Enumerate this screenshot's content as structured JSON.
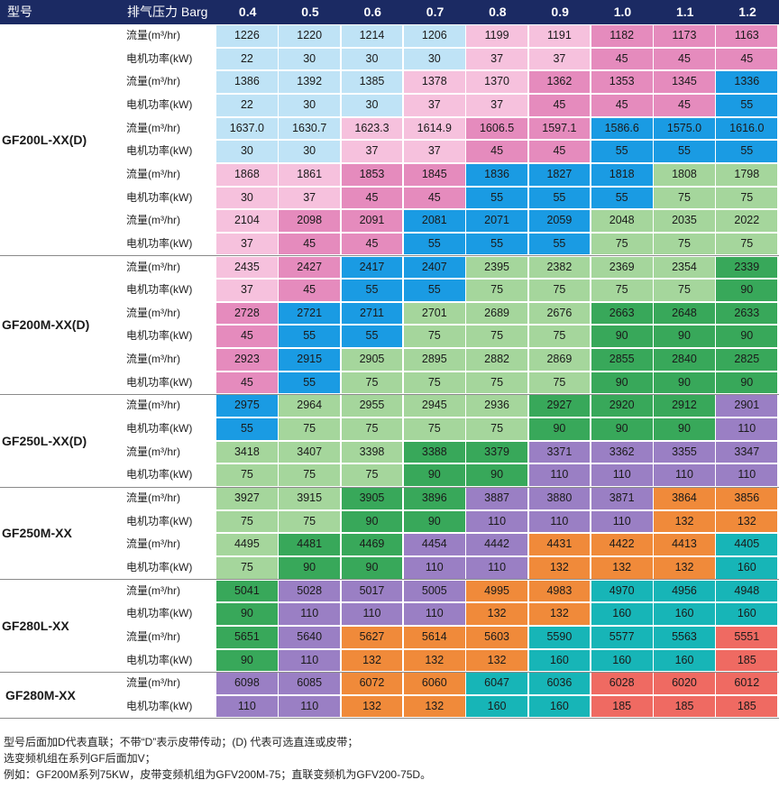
{
  "header": {
    "model_label": "型号",
    "pressure_label": "排气压力 Barg",
    "pressures": [
      "0.4",
      "0.5",
      "0.6",
      "0.7",
      "0.8",
      "0.9",
      "1.0",
      "1.1",
      "1.2"
    ]
  },
  "row_labels": {
    "flow": "流量(m³/hr)",
    "power": "电机功率(kW)"
  },
  "colors": {
    "header_bg": "#1b2a63",
    "lightblue": "#bfe3f6",
    "lightpink": "#f6c1dd",
    "pink": "#e58bbd",
    "blue": "#1a9be3",
    "green": "#a5d69c",
    "darkgreen": "#38a85a",
    "purple": "#9a7fc4",
    "orange": "#f08a3a",
    "teal": "#17b5b7",
    "red": "#ef6a62"
  },
  "groups": [
    {
      "model": "GF200L-XX(D)",
      "pairs": [
        {
          "flow": [
            "1226",
            "1220",
            "1214",
            "1206",
            "1199",
            "1191",
            "1182",
            "1173",
            "1163"
          ],
          "power": [
            "22",
            "30",
            "30",
            "30",
            "37",
            "37",
            "45",
            "45",
            "45"
          ],
          "flow_colors": [
            "lightblue",
            "lightblue",
            "lightblue",
            "lightblue",
            "lightpink",
            "lightpink",
            "pink",
            "pink",
            "pink"
          ],
          "power_colors": [
            "lightblue",
            "lightblue",
            "lightblue",
            "lightblue",
            "lightpink",
            "lightpink",
            "pink",
            "pink",
            "pink"
          ]
        },
        {
          "flow": [
            "1386",
            "1392",
            "1385",
            "1378",
            "1370",
            "1362",
            "1353",
            "1345",
            "1336"
          ],
          "power": [
            "22",
            "30",
            "30",
            "37",
            "37",
            "45",
            "45",
            "45",
            "55"
          ],
          "flow_colors": [
            "lightblue",
            "lightblue",
            "lightblue",
            "lightpink",
            "lightpink",
            "pink",
            "pink",
            "pink",
            "blue"
          ],
          "power_colors": [
            "lightblue",
            "lightblue",
            "lightblue",
            "lightpink",
            "lightpink",
            "pink",
            "pink",
            "pink",
            "blue"
          ]
        },
        {
          "flow": [
            "1637.0",
            "1630.7",
            "1623.3",
            "1614.9",
            "1606.5",
            "1597.1",
            "1586.6",
            "1575.0",
            "1616.0"
          ],
          "power": [
            "30",
            "30",
            "37",
            "37",
            "45",
            "45",
            "55",
            "55",
            "55"
          ],
          "flow_colors": [
            "lightblue",
            "lightblue",
            "lightpink",
            "lightpink",
            "pink",
            "pink",
            "blue",
            "blue",
            "blue"
          ],
          "power_colors": [
            "lightblue",
            "lightblue",
            "lightpink",
            "lightpink",
            "pink",
            "pink",
            "blue",
            "blue",
            "blue"
          ]
        },
        {
          "flow": [
            "1868",
            "1861",
            "1853",
            "1845",
            "1836",
            "1827",
            "1818",
            "1808",
            "1798"
          ],
          "power": [
            "30",
            "37",
            "45",
            "45",
            "55",
            "55",
            "55",
            "75",
            "75"
          ],
          "flow_colors": [
            "lightpink",
            "lightpink",
            "pink",
            "pink",
            "blue",
            "blue",
            "blue",
            "green",
            "green"
          ],
          "power_colors": [
            "lightpink",
            "lightpink",
            "pink",
            "pink",
            "blue",
            "blue",
            "blue",
            "green",
            "green"
          ]
        },
        {
          "flow": [
            "2104",
            "2098",
            "2091",
            "2081",
            "2071",
            "2059",
            "2048",
            "2035",
            "2022"
          ],
          "power": [
            "37",
            "45",
            "45",
            "55",
            "55",
            "55",
            "75",
            "75",
            "75"
          ],
          "flow_colors": [
            "lightpink",
            "pink",
            "pink",
            "blue",
            "blue",
            "blue",
            "green",
            "green",
            "green"
          ],
          "power_colors": [
            "lightpink",
            "pink",
            "pink",
            "blue",
            "blue",
            "blue",
            "green",
            "green",
            "green"
          ]
        }
      ]
    },
    {
      "model": "GF200M-XX(D)",
      "pairs": [
        {
          "flow": [
            "2435",
            "2427",
            "2417",
            "2407",
            "2395",
            "2382",
            "2369",
            "2354",
            "2339"
          ],
          "power": [
            "37",
            "45",
            "55",
            "55",
            "75",
            "75",
            "75",
            "75",
            "90"
          ],
          "flow_colors": [
            "lightpink",
            "pink",
            "blue",
            "blue",
            "green",
            "green",
            "green",
            "green",
            "darkgreen"
          ],
          "power_colors": [
            "lightpink",
            "pink",
            "blue",
            "blue",
            "green",
            "green",
            "green",
            "green",
            "darkgreen"
          ]
        },
        {
          "flow": [
            "2728",
            "2721",
            "2711",
            "2701",
            "2689",
            "2676",
            "2663",
            "2648",
            "2633"
          ],
          "power": [
            "45",
            "55",
            "55",
            "75",
            "75",
            "75",
            "90",
            "90",
            "90"
          ],
          "flow_colors": [
            "pink",
            "blue",
            "blue",
            "green",
            "green",
            "green",
            "darkgreen",
            "darkgreen",
            "darkgreen"
          ],
          "power_colors": [
            "pink",
            "blue",
            "blue",
            "green",
            "green",
            "green",
            "darkgreen",
            "darkgreen",
            "darkgreen"
          ]
        },
        {
          "flow": [
            "2923",
            "2915",
            "2905",
            "2895",
            "2882",
            "2869",
            "2855",
            "2840",
            "2825"
          ],
          "power": [
            "45",
            "55",
            "75",
            "75",
            "75",
            "75",
            "90",
            "90",
            "90"
          ],
          "flow_colors": [
            "pink",
            "blue",
            "green",
            "green",
            "green",
            "green",
            "darkgreen",
            "darkgreen",
            "darkgreen"
          ],
          "power_colors": [
            "pink",
            "blue",
            "green",
            "green",
            "green",
            "green",
            "darkgreen",
            "darkgreen",
            "darkgreen"
          ]
        }
      ]
    },
    {
      "model": "GF250L-XX(D)",
      "pairs": [
        {
          "flow": [
            "2975",
            "2964",
            "2955",
            "2945",
            "2936",
            "2927",
            "2920",
            "2912",
            "2901"
          ],
          "power": [
            "55",
            "75",
            "75",
            "75",
            "75",
            "90",
            "90",
            "90",
            "110"
          ],
          "flow_colors": [
            "blue",
            "green",
            "green",
            "green",
            "green",
            "darkgreen",
            "darkgreen",
            "darkgreen",
            "purple"
          ],
          "power_colors": [
            "blue",
            "green",
            "green",
            "green",
            "green",
            "darkgreen",
            "darkgreen",
            "darkgreen",
            "purple"
          ]
        },
        {
          "flow": [
            "3418",
            "3407",
            "3398",
            "3388",
            "3379",
            "3371",
            "3362",
            "3355",
            "3347"
          ],
          "power": [
            "75",
            "75",
            "75",
            "90",
            "90",
            "110",
            "110",
            "110",
            "110"
          ],
          "flow_colors": [
            "green",
            "green",
            "green",
            "darkgreen",
            "darkgreen",
            "purple",
            "purple",
            "purple",
            "purple"
          ],
          "power_colors": [
            "green",
            "green",
            "green",
            "darkgreen",
            "darkgreen",
            "purple",
            "purple",
            "purple",
            "purple"
          ]
        }
      ]
    },
    {
      "model": "GF250M-XX",
      "pairs": [
        {
          "flow": [
            "3927",
            "3915",
            "3905",
            "3896",
            "3887",
            "3880",
            "3871",
            "3864",
            "3856"
          ],
          "power": [
            "75",
            "75",
            "90",
            "90",
            "110",
            "110",
            "110",
            "132",
            "132"
          ],
          "flow_colors": [
            "green",
            "green",
            "darkgreen",
            "darkgreen",
            "purple",
            "purple",
            "purple",
            "orange",
            "orange"
          ],
          "power_colors": [
            "green",
            "green",
            "darkgreen",
            "darkgreen",
            "purple",
            "purple",
            "purple",
            "orange",
            "orange"
          ]
        },
        {
          "flow": [
            "4495",
            "4481",
            "4469",
            "4454",
            "4442",
            "4431",
            "4422",
            "4413",
            "4405"
          ],
          "power": [
            "75",
            "90",
            "90",
            "110",
            "110",
            "132",
            "132",
            "132",
            "160"
          ],
          "flow_colors": [
            "green",
            "darkgreen",
            "darkgreen",
            "purple",
            "purple",
            "orange",
            "orange",
            "orange",
            "teal"
          ],
          "power_colors": [
            "green",
            "darkgreen",
            "darkgreen",
            "purple",
            "purple",
            "orange",
            "orange",
            "orange",
            "teal"
          ]
        }
      ]
    },
    {
      "model": "GF280L-XX",
      "pairs": [
        {
          "flow": [
            "5041",
            "5028",
            "5017",
            "5005",
            "4995",
            "4983",
            "4970",
            "4956",
            "4948"
          ],
          "power": [
            "90",
            "110",
            "110",
            "110",
            "132",
            "132",
            "160",
            "160",
            "160"
          ],
          "flow_colors": [
            "darkgreen",
            "purple",
            "purple",
            "purple",
            "orange",
            "orange",
            "teal",
            "teal",
            "teal"
          ],
          "power_colors": [
            "darkgreen",
            "purple",
            "purple",
            "purple",
            "orange",
            "orange",
            "teal",
            "teal",
            "teal"
          ]
        },
        {
          "flow": [
            "5651",
            "5640",
            "5627",
            "5614",
            "5603",
            "5590",
            "5577",
            "5563",
            "5551"
          ],
          "power": [
            "90",
            "110",
            "132",
            "132",
            "132",
            "160",
            "160",
            "160",
            "185"
          ],
          "flow_colors": [
            "darkgreen",
            "purple",
            "orange",
            "orange",
            "orange",
            "teal",
            "teal",
            "teal",
            "red"
          ],
          "power_colors": [
            "darkgreen",
            "purple",
            "orange",
            "orange",
            "orange",
            "teal",
            "teal",
            "teal",
            "red"
          ]
        }
      ]
    },
    {
      "model": "GF280M-XX",
      "pairs": [
        {
          "flow": [
            "6098",
            "6085",
            "6072",
            "6060",
            "6047",
            "6036",
            "6028",
            "6020",
            "6012"
          ],
          "power": [
            "110",
            "110",
            "132",
            "132",
            "160",
            "160",
            "185",
            "185",
            "185"
          ],
          "flow_colors": [
            "purple",
            "purple",
            "orange",
            "orange",
            "teal",
            "teal",
            "red",
            "red",
            "red"
          ],
          "power_colors": [
            "purple",
            "purple",
            "orange",
            "orange",
            "teal",
            "teal",
            "red",
            "red",
            "red"
          ]
        }
      ]
    }
  ],
  "notes": [
    "型号后面加D代表直联；不带“D”表示皮带传动；(D) 代表可选直连或皮带；",
    "选变频机组在系列GF后面加V；",
    "例如：GF200M系列75KW，皮带变频机组为GFV200M-75；直联变频机为GFV200-75D。"
  ]
}
